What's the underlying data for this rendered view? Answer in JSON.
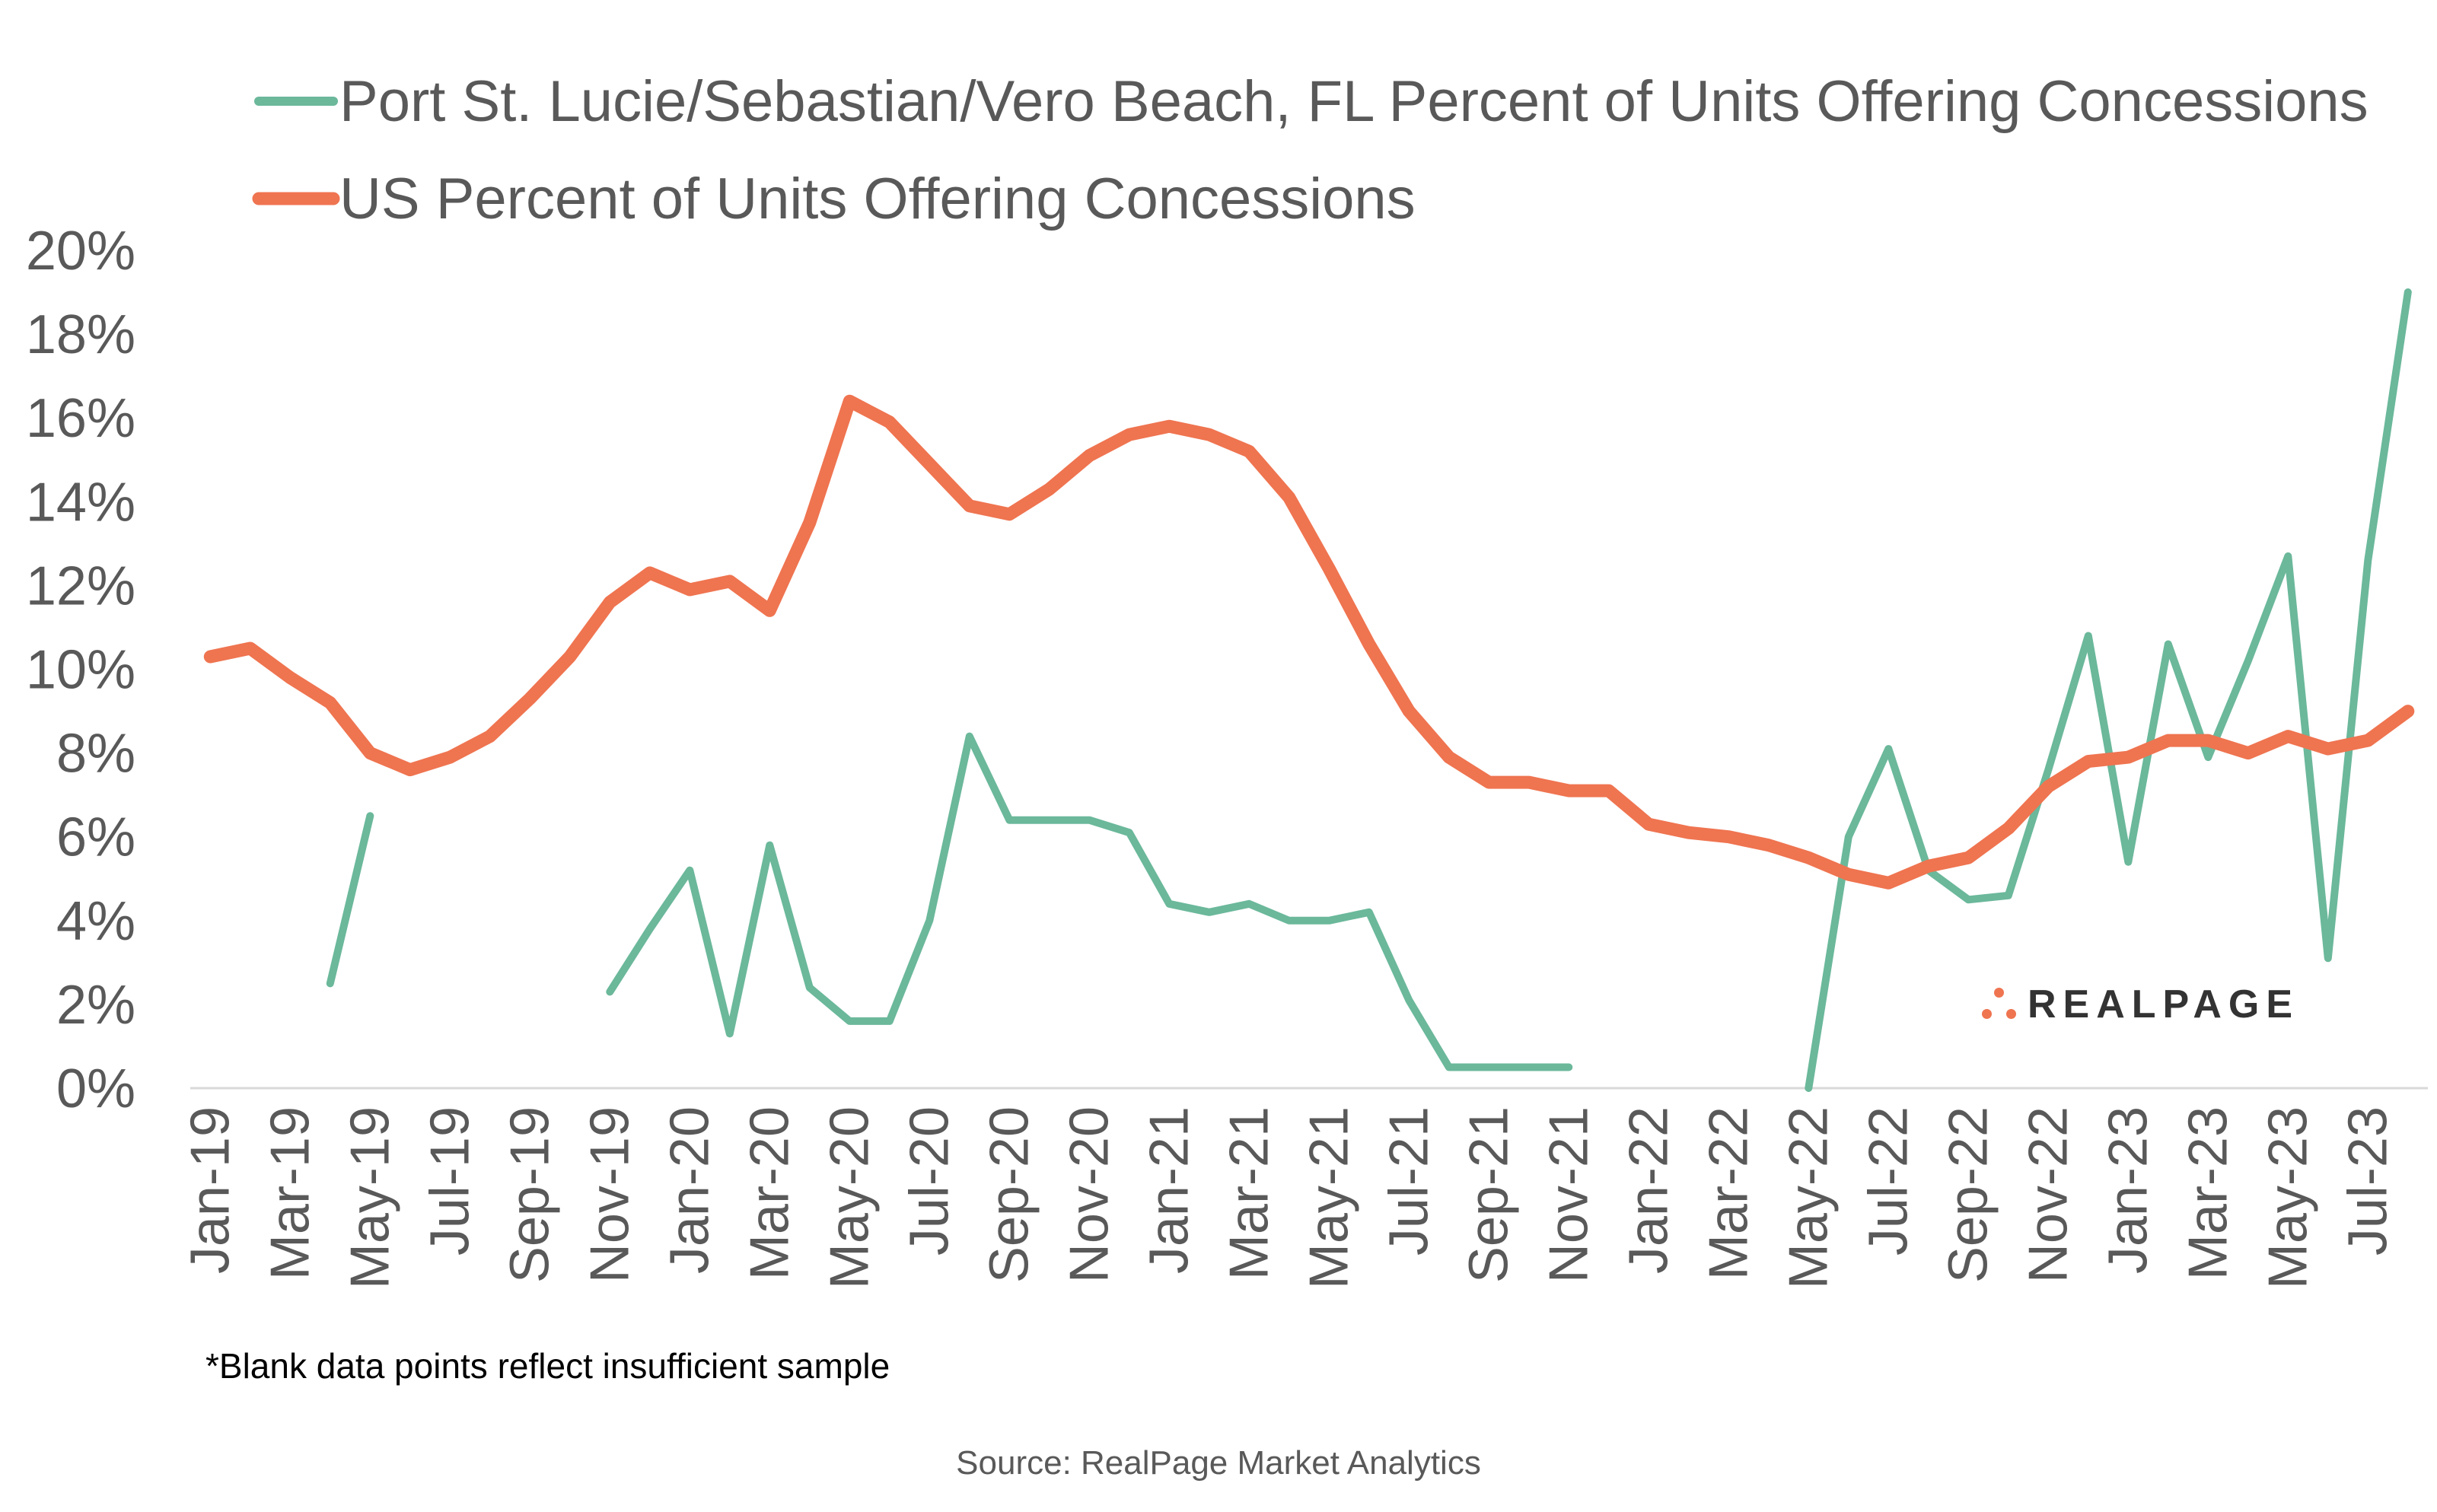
{
  "chart_data": {
    "type": "line",
    "title": "",
    "xlabel": "",
    "ylabel": "",
    "ylim": [
      0,
      0.2
    ],
    "y_ticks": [
      "0%",
      "2%",
      "4%",
      "6%",
      "8%",
      "10%",
      "12%",
      "14%",
      "16%",
      "18%",
      "20%"
    ],
    "x": [
      "Jan-19",
      "Feb-19",
      "Mar-19",
      "Apr-19",
      "May-19",
      "Jun-19",
      "Jul-19",
      "Aug-19",
      "Sep-19",
      "Oct-19",
      "Nov-19",
      "Dec-19",
      "Jan-20",
      "Feb-20",
      "Mar-20",
      "Apr-20",
      "May-20",
      "Jun-20",
      "Jul-20",
      "Aug-20",
      "Sep-20",
      "Oct-20",
      "Nov-20",
      "Dec-20",
      "Jan-21",
      "Feb-21",
      "Mar-21",
      "Apr-21",
      "May-21",
      "Jun-21",
      "Jul-21",
      "Aug-21",
      "Sep-21",
      "Oct-21",
      "Nov-21",
      "Dec-21",
      "Jan-22",
      "Feb-22",
      "Mar-22",
      "Apr-22",
      "May-22",
      "Jun-22",
      "Jul-22",
      "Aug-22",
      "Sep-22",
      "Oct-22",
      "Nov-22",
      "Dec-22",
      "Jan-23",
      "Feb-23",
      "Mar-23",
      "Apr-23",
      "May-23",
      "Jun-23",
      "Jul-23",
      "Aug-23"
    ],
    "x_tick_labels": [
      "Jan-19",
      "Mar-19",
      "May-19",
      "Jul-19",
      "Sep-19",
      "Nov-19",
      "Jan-20",
      "Mar-20",
      "May-20",
      "Jul-20",
      "Sep-20",
      "Nov-20",
      "Jan-21",
      "Mar-21",
      "May-21",
      "Jul-21",
      "Sep-21",
      "Nov-21",
      "Jan-22",
      "Mar-22",
      "May-22",
      "Jul-22",
      "Sep-22",
      "Nov-22",
      "Jan-23",
      "Mar-23",
      "May-23",
      "Jul-23"
    ],
    "legend_position": "top-left",
    "grid": false,
    "series": [
      {
        "name": "Port St. Lucie/Sebastian/Vero Beach, FL Percent of Units Offering Concessions",
        "color": "#6bb89b",
        "values": [
          null,
          null,
          null,
          0.025,
          0.065,
          null,
          null,
          null,
          null,
          null,
          0.023,
          0.038,
          0.052,
          0.013,
          0.058,
          0.024,
          0.016,
          0.016,
          0.04,
          0.084,
          0.064,
          0.064,
          0.064,
          0.061,
          0.044,
          0.042,
          0.044,
          0.04,
          0.04,
          0.042,
          0.021,
          0.005,
          0.005,
          0.005,
          0.005,
          null,
          null,
          null,
          null,
          null,
          0.0,
          0.06,
          0.081,
          0.052,
          0.045,
          0.046,
          0.076,
          0.108,
          0.054,
          0.106,
          0.079,
          0.102,
          0.127,
          0.031,
          0.126,
          0.19
        ]
      },
      {
        "name": "US Percent of Units Offering Concessions",
        "color": "#ef7450",
        "values": [
          0.103,
          0.105,
          0.098,
          0.092,
          0.08,
          0.076,
          0.079,
          0.084,
          0.093,
          0.103,
          0.116,
          0.123,
          0.119,
          0.121,
          0.114,
          0.135,
          0.164,
          0.159,
          0.149,
          0.139,
          0.137,
          0.143,
          0.151,
          0.156,
          0.158,
          0.156,
          0.152,
          0.141,
          0.124,
          0.106,
          0.09,
          0.079,
          0.073,
          0.073,
          0.071,
          0.071,
          0.063,
          0.061,
          0.06,
          0.058,
          0.055,
          0.051,
          0.049,
          0.053,
          0.055,
          0.062,
          0.072,
          0.078,
          0.079,
          0.083,
          0.083,
          0.08,
          0.084,
          0.081,
          0.083,
          0.09
        ]
      }
    ]
  },
  "footnote": "*Blank data points reflect insufficient sample",
  "source": "Source: RealPage Market Analytics",
  "logo": {
    "text": "REALPAGE",
    "color": "#ef7450"
  }
}
